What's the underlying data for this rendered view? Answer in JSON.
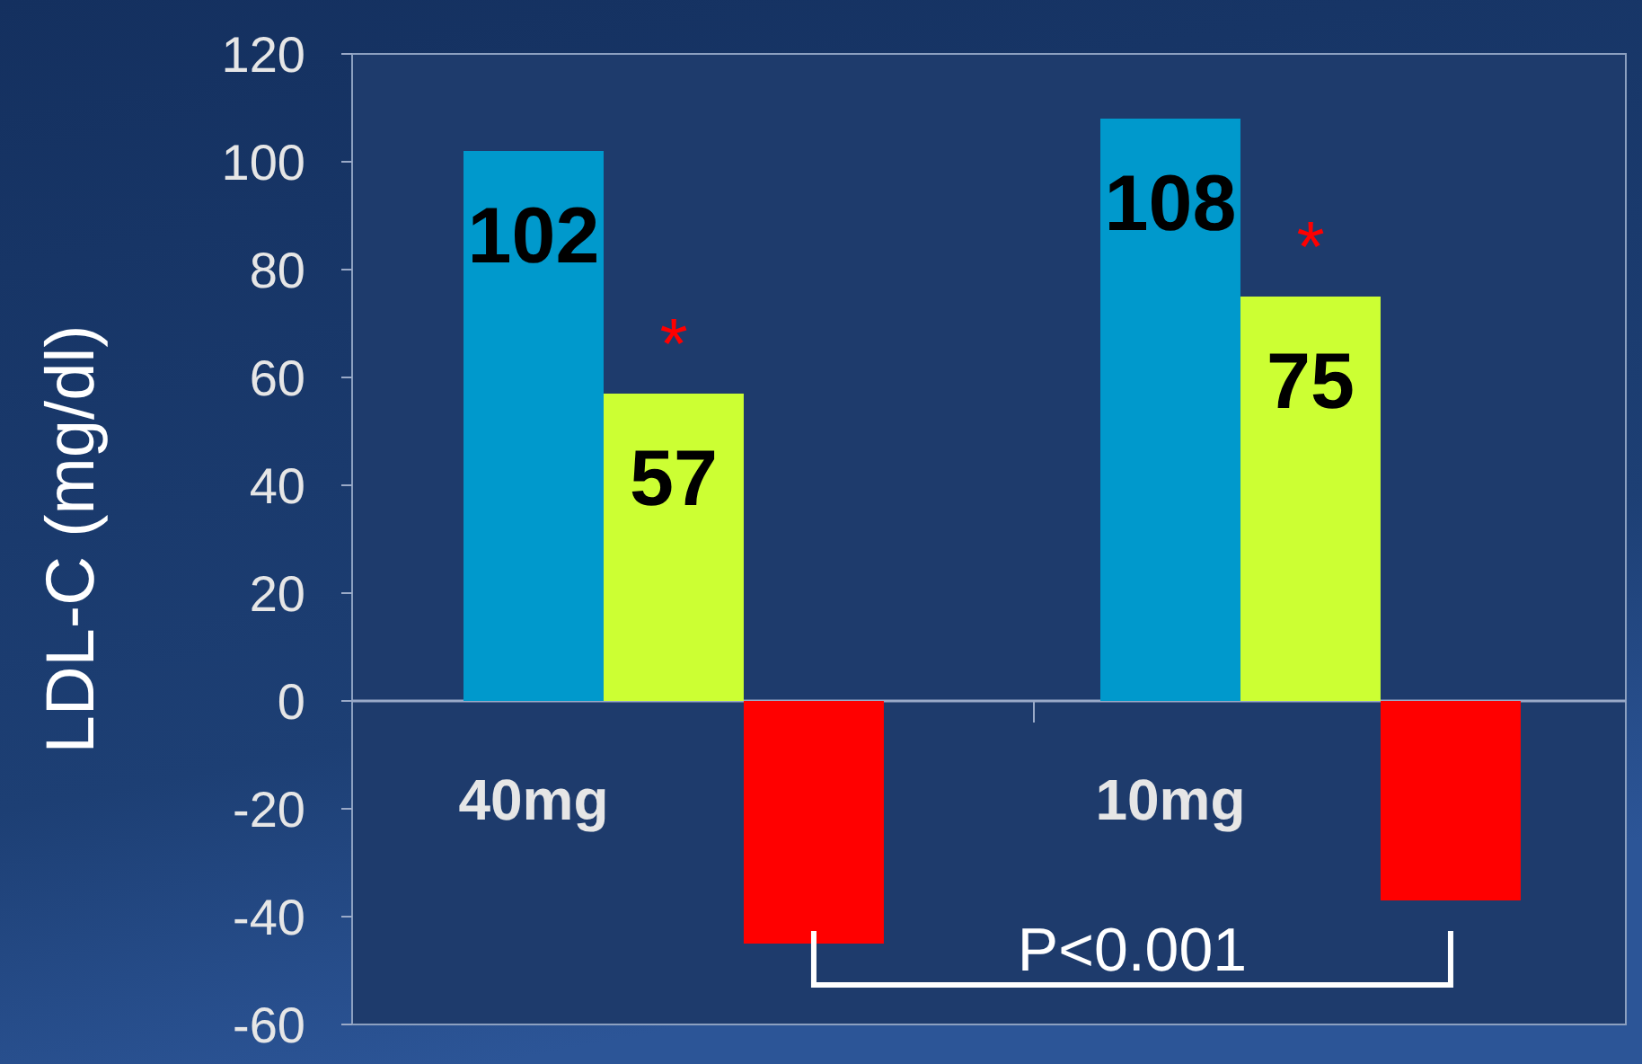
{
  "chart_data": {
    "type": "bar",
    "ylabel": "LDL-C (mg/dl)",
    "categories": [
      "40mg",
      "10mg"
    ],
    "series": [
      {
        "color": "#0099cc",
        "values": [
          102,
          108
        ],
        "value_labels": [
          "102",
          "108"
        ]
      },
      {
        "color": "#ccff33",
        "values": [
          57,
          75
        ],
        "value_labels": [
          "57",
          "75"
        ]
      },
      {
        "color": "#ff0000",
        "values": [
          -45,
          -37
        ]
      }
    ],
    "ylim": [
      -60,
      120
    ],
    "yticks": [
      -60,
      -40,
      -20,
      0,
      20,
      40,
      60,
      80,
      100,
      120
    ],
    "grid": false,
    "annotations": [
      "*",
      "*",
      "P<0.001"
    ]
  }
}
